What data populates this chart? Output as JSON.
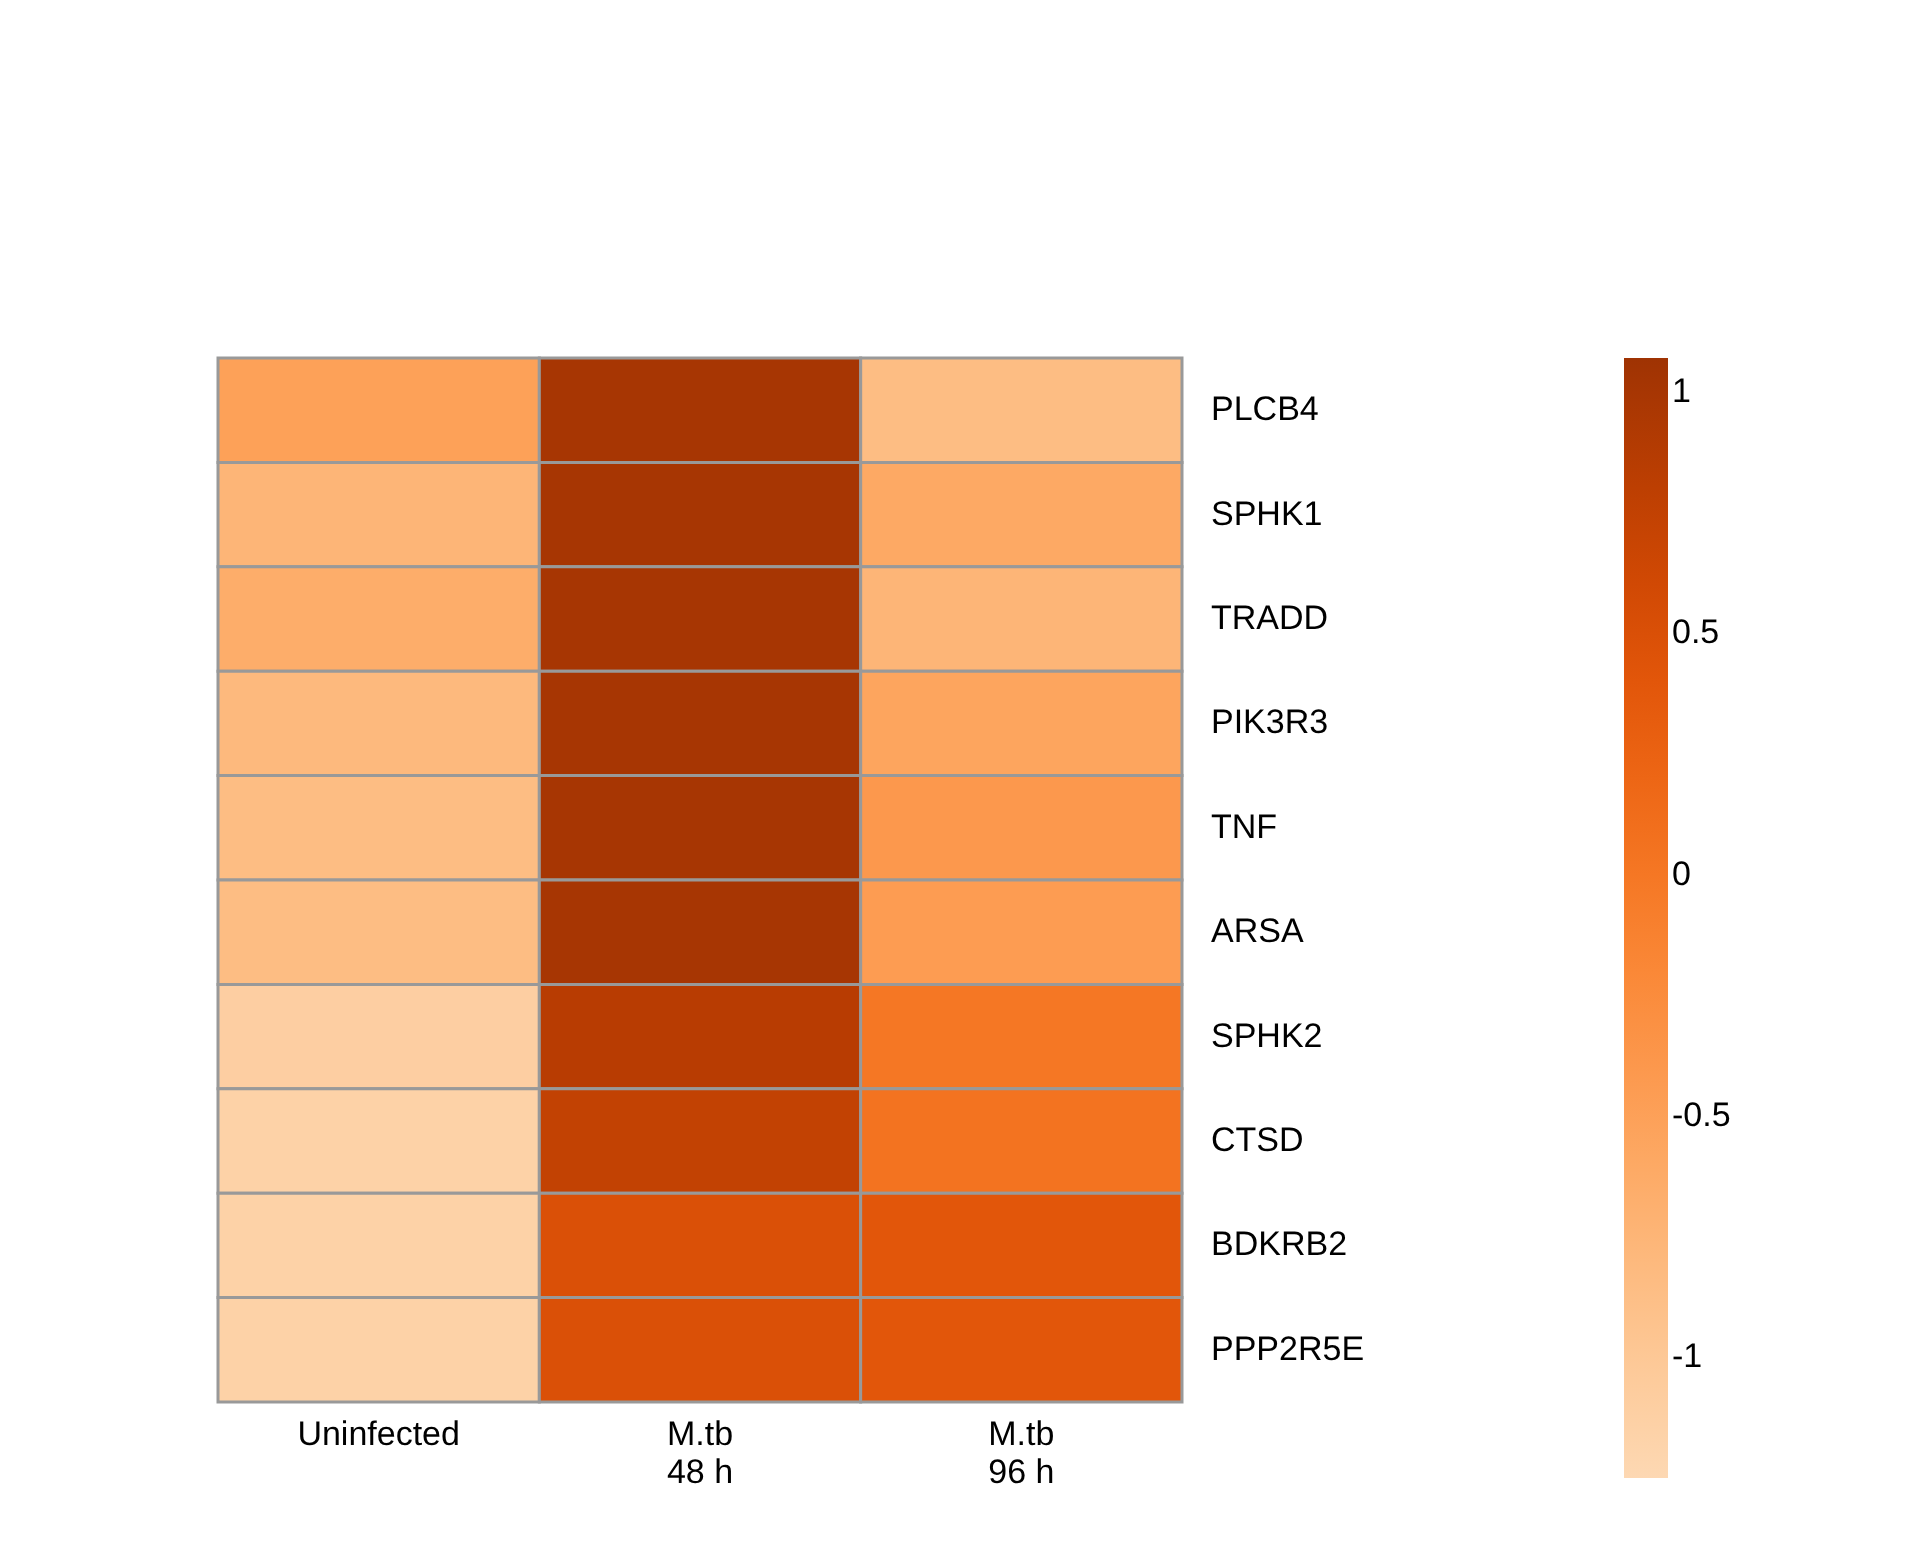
{
  "chart_data": {
    "type": "heatmap",
    "categories": [
      "Uninfected",
      "M.tb\n48 h",
      "M.tb\n96 h"
    ],
    "y_categories": [
      "PLCB4",
      "SPHK1",
      "TRADD",
      "PIK3R3",
      "TNF",
      "ARSA",
      "SPHK2",
      "CTSD",
      "BDKRB2",
      "PPP2R5E"
    ],
    "cells": [
      [
        -0.5,
        1.0,
        -0.85
      ],
      [
        -0.75,
        1.0,
        -0.6
      ],
      [
        -0.65,
        1.0,
        -0.75
      ],
      [
        -0.8,
        1.0,
        -0.55
      ],
      [
        -0.85,
        1.0,
        -0.4
      ],
      [
        -0.85,
        1.0,
        -0.45
      ],
      [
        -1.1,
        0.85,
        0.0
      ],
      [
        -1.15,
        0.75,
        0.05
      ],
      [
        -1.15,
        0.5,
        0.4
      ],
      [
        -1.15,
        0.5,
        0.4
      ]
    ],
    "clim": [
      -1.25,
      1.07
    ],
    "cticks": [
      -1,
      -0.5,
      0,
      0.5,
      1
    ]
  }
}
